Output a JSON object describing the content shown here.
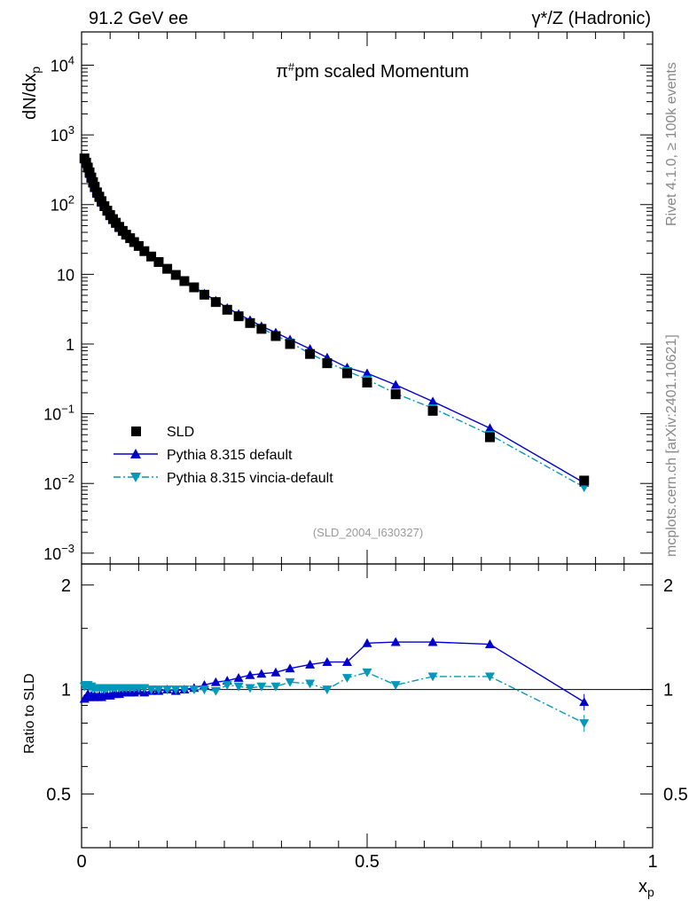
{
  "header": {
    "left": "91.2 GeV ee",
    "right": "γ*/Z (Hadronic)"
  },
  "side_labels": {
    "rivet": "Rivet 4.1.0, ≥ 100k events",
    "mcplots": "mcplots.cern.ch [arXiv:2401.10621]"
  },
  "watermark": "(SLD_2004_I630327)",
  "colors": {
    "data": "#000000",
    "default": "#0000cc",
    "vincia": "#0099bb"
  },
  "chart_data": [
    {
      "type": "line",
      "scale": "log",
      "title": "π#pm scaled Momentum",
      "ylabel": "dN/dxp",
      "xlim": [
        0,
        1
      ],
      "ylim": [
        0.0007,
        30000
      ],
      "yticks": [
        {
          "v": 10000,
          "label": "10",
          "exp": "4"
        },
        {
          "v": 1000,
          "label": "10",
          "exp": "3"
        },
        {
          "v": 100,
          "label": "10",
          "exp": "2"
        },
        {
          "v": 10,
          "label": "10",
          "exp": ""
        },
        {
          "v": 1,
          "label": "1",
          "exp": ""
        },
        {
          "v": 0.1,
          "label": "10",
          "exp": "−1"
        },
        {
          "v": 0.01,
          "label": "10",
          "exp": "−2"
        },
        {
          "v": 0.001,
          "label": "10",
          "exp": "−3"
        }
      ],
      "x": [
        0.005,
        0.008,
        0.011,
        0.014,
        0.017,
        0.02,
        0.023,
        0.027,
        0.031,
        0.035,
        0.04,
        0.045,
        0.05,
        0.055,
        0.06,
        0.066,
        0.072,
        0.078,
        0.085,
        0.092,
        0.1,
        0.11,
        0.122,
        0.135,
        0.15,
        0.165,
        0.18,
        0.197,
        0.215,
        0.235,
        0.255,
        0.275,
        0.295,
        0.315,
        0.34,
        0.365,
        0.4,
        0.43,
        0.465,
        0.5,
        0.55,
        0.615,
        0.715,
        0.88
      ],
      "series": [
        {
          "name": "SLD",
          "marker": "square",
          "values": [
            460,
            400,
            340,
            290,
            245,
            210,
            180,
            150,
            130,
            112,
            95,
            82,
            71,
            62,
            55,
            48,
            42,
            37,
            33,
            29,
            25.5,
            21.5,
            18,
            15,
            12,
            9.8,
            8,
            6.5,
            5.1,
            4,
            3.1,
            2.5,
            2.0,
            1.65,
            1.3,
            1.0,
            0.72,
            0.53,
            0.38,
            0.28,
            0.19,
            0.11,
            0.046,
            0.011
          ]
        },
        {
          "name": "Pythia 8.315 default",
          "marker": "triangle-up",
          "values": [
            445,
            380,
            330,
            275,
            235,
            200,
            172,
            142,
            124,
            106,
            92,
            79,
            68,
            60,
            53,
            46,
            41,
            36,
            32,
            28.5,
            25,
            21,
            17.8,
            14.8,
            12,
            9.8,
            8,
            6.6,
            5.3,
            4.2,
            3.3,
            2.7,
            2.2,
            1.8,
            1.46,
            1.16,
            0.85,
            0.64,
            0.46,
            0.38,
            0.26,
            0.15,
            0.062,
            0.0102
          ]
        },
        {
          "name": "Pythia 8.315 vincia-default",
          "marker": "triangle-down",
          "values": [
            470,
            410,
            350,
            295,
            250,
            212,
            182,
            152,
            131,
            113,
            96,
            83,
            72,
            63,
            55.5,
            48.5,
            42.5,
            37.5,
            33.3,
            29.3,
            25.7,
            21.6,
            18.1,
            15.1,
            12.1,
            9.85,
            8.05,
            6.55,
            5.1,
            4.0,
            3.2,
            2.55,
            2.03,
            1.68,
            1.33,
            1.05,
            0.73,
            0.55,
            0.41,
            0.31,
            0.195,
            0.12,
            0.05,
            0.0088
          ]
        }
      ]
    },
    {
      "type": "line",
      "scale": "log",
      "ylabel": "Ratio to SLD",
      "xlabel": "xp",
      "xlim": [
        0,
        1
      ],
      "ylim": [
        0.35,
        2.3
      ],
      "yticks": [
        {
          "v": 2,
          "label": "2"
        },
        {
          "v": 1,
          "label": "1"
        },
        {
          "v": 0.5,
          "label": "0.5"
        }
      ],
      "xticks": [
        {
          "v": 0,
          "label": "0"
        },
        {
          "v": 0.5,
          "label": "0.5"
        },
        {
          "v": 1,
          "label": "1"
        }
      ],
      "reference": 1,
      "x": [
        0.005,
        0.008,
        0.011,
        0.014,
        0.017,
        0.02,
        0.023,
        0.027,
        0.031,
        0.035,
        0.04,
        0.045,
        0.05,
        0.055,
        0.06,
        0.066,
        0.072,
        0.078,
        0.085,
        0.092,
        0.1,
        0.11,
        0.122,
        0.135,
        0.15,
        0.165,
        0.18,
        0.197,
        0.215,
        0.235,
        0.255,
        0.275,
        0.295,
        0.315,
        0.34,
        0.365,
        0.4,
        0.43,
        0.465,
        0.5,
        0.55,
        0.615,
        0.715,
        0.88
      ],
      "series": [
        {
          "name": "Pythia 8.315 default",
          "marker": "triangle-up",
          "values": [
            0.94,
            0.95,
            0.97,
            0.95,
            0.96,
            0.95,
            0.96,
            0.95,
            0.96,
            0.95,
            0.97,
            0.96,
            0.96,
            0.97,
            0.97,
            0.97,
            0.98,
            0.98,
            0.98,
            0.98,
            0.99,
            0.98,
            0.99,
            0.99,
            1.0,
            0.99,
            1.0,
            1.01,
            1.03,
            1.05,
            1.06,
            1.08,
            1.1,
            1.11,
            1.12,
            1.15,
            1.18,
            1.2,
            1.2,
            1.36,
            1.37,
            1.37,
            1.35,
            0.92
          ],
          "errors": [
            0.01,
            0.01,
            0.01,
            0.01,
            0.01,
            0.01,
            0.01,
            0.01,
            0.01,
            0.01,
            0.01,
            0.01,
            0.01,
            0.01,
            0.01,
            0.01,
            0.01,
            0.01,
            0.01,
            0.01,
            0.01,
            0.01,
            0.01,
            0.01,
            0.01,
            0.01,
            0.01,
            0.01,
            0.01,
            0.01,
            0.01,
            0.01,
            0.01,
            0.01,
            0.01,
            0.01,
            0.015,
            0.015,
            0.015,
            0.02,
            0.025,
            0.025,
            0.035,
            0.05
          ]
        },
        {
          "name": "Pythia 8.315 vincia-default",
          "marker": "triangle-down",
          "values": [
            1.02,
            1.03,
            1.03,
            1.02,
            1.02,
            1.01,
            1.01,
            1.01,
            1.01,
            1.01,
            1.0,
            1.01,
            1.01,
            1.01,
            1.01,
            1.01,
            1.01,
            1.01,
            1.01,
            1.01,
            1.01,
            1.01,
            1.0,
            1.0,
            1.0,
            1.0,
            1.0,
            1.0,
            1.0,
            0.99,
            1.03,
            1.02,
            1.01,
            1.02,
            1.02,
            1.05,
            1.04,
            1.0,
            1.08,
            1.12,
            1.03,
            1.09,
            1.09,
            0.8
          ],
          "errors": [
            0.01,
            0.01,
            0.01,
            0.01,
            0.01,
            0.01,
            0.01,
            0.01,
            0.01,
            0.01,
            0.01,
            0.01,
            0.01,
            0.01,
            0.01,
            0.01,
            0.01,
            0.01,
            0.01,
            0.01,
            0.01,
            0.01,
            0.01,
            0.01,
            0.01,
            0.01,
            0.01,
            0.01,
            0.01,
            0.01,
            0.01,
            0.01,
            0.01,
            0.01,
            0.01,
            0.01,
            0.015,
            0.015,
            0.015,
            0.02,
            0.02,
            0.025,
            0.03,
            0.045
          ]
        }
      ]
    }
  ],
  "legend": [
    {
      "name": "SLD",
      "marker": "square"
    },
    {
      "name": "Pythia 8.315 default",
      "marker": "triangle-up"
    },
    {
      "name": "Pythia 8.315 vincia-default",
      "marker": "triangle-down"
    }
  ]
}
